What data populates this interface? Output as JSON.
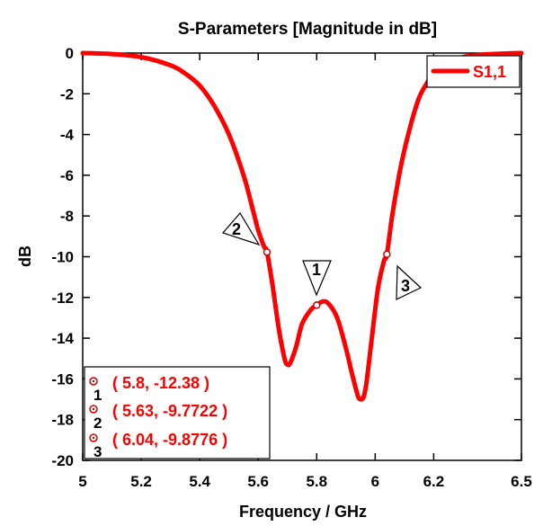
{
  "chart_data": {
    "type": "line",
    "title": "S-Parameters [Magnitude in dB]",
    "xlabel": "Frequency / GHz",
    "ylabel": "dB",
    "xlim": [
      5,
      6.5
    ],
    "ylim": [
      -20,
      0
    ],
    "xticks": [
      5,
      5.2,
      5.4,
      5.6,
      5.8,
      6,
      6.2,
      6.5
    ],
    "xtick_labels": [
      "5",
      "5.2",
      "5.4",
      "5.6",
      "5.8",
      "6",
      "6.2",
      "6.5"
    ],
    "yticks": [
      0,
      -2,
      -4,
      -6,
      -8,
      -10,
      -12,
      -14,
      -16,
      -18,
      -20
    ],
    "ytick_labels": [
      "0",
      "-2",
      "-4",
      "-6",
      "-8",
      "-10",
      "-12",
      "-14",
      "-16",
      "-18",
      "-20"
    ],
    "grid": false,
    "legend_position": "top-right",
    "series": [
      {
        "name": "S1,1",
        "color": "#ff0000",
        "x": [
          5.0,
          5.1,
          5.2,
          5.3,
          5.35,
          5.4,
          5.45,
          5.5,
          5.55,
          5.58,
          5.6,
          5.62,
          5.63,
          5.65,
          5.67,
          5.69,
          5.7,
          5.71,
          5.73,
          5.75,
          5.78,
          5.8,
          5.82,
          5.84,
          5.87,
          5.9,
          5.92,
          5.94,
          5.95,
          5.96,
          5.97,
          5.99,
          6.01,
          6.03,
          6.04,
          6.06,
          6.09,
          6.12,
          6.15,
          6.18,
          6.2,
          6.25,
          6.3,
          6.35,
          6.4,
          6.45,
          6.5
        ],
        "y": [
          0,
          -0.05,
          -0.2,
          -0.6,
          -1.0,
          -1.6,
          -2.6,
          -4.0,
          -6.0,
          -7.6,
          -8.7,
          -9.5,
          -9.77,
          -11.5,
          -13.5,
          -15.0,
          -15.3,
          -15.2,
          -14.4,
          -13.3,
          -12.6,
          -12.38,
          -12.2,
          -12.3,
          -13.0,
          -14.5,
          -15.7,
          -16.8,
          -17.0,
          -16.9,
          -16.2,
          -13.8,
          -11.5,
          -10.2,
          -9.88,
          -7.8,
          -5.4,
          -3.6,
          -2.2,
          -1.4,
          -1.0,
          -0.5,
          -0.2,
          -0.1,
          -0.05,
          -0.02,
          0
        ]
      }
    ],
    "markers": [
      {
        "id": "1",
        "x": 5.8,
        "y": -12.38,
        "label": "( 5.8, -12.38 )"
      },
      {
        "id": "2",
        "x": 5.63,
        "y": -9.7722,
        "label": "( 5.63, -9.7722 )"
      },
      {
        "id": "3",
        "x": 6.04,
        "y": -9.8776,
        "label": "( 6.04, -9.8776 )"
      }
    ]
  }
}
